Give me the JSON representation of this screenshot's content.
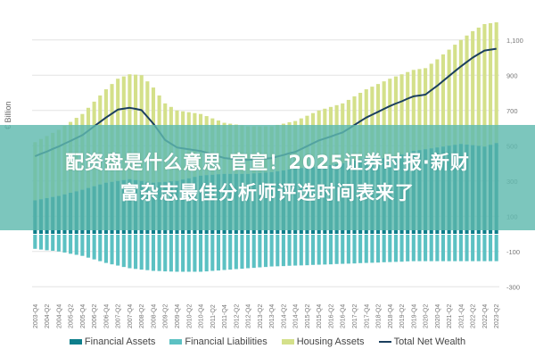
{
  "chart_data": {
    "type": "bar",
    "stacked": true,
    "title": "",
    "ylabel": "€ Billion",
    "xlabel": "",
    "ylim": [
      -300,
      1200
    ],
    "yticks": [
      1100,
      900,
      700,
      500,
      300,
      100,
      -100,
      -300
    ],
    "ytick_labels": [
      "1,100",
      "900",
      "700",
      "500",
      "300",
      "100",
      "-100",
      "-300"
    ],
    "grid": true,
    "legend_position": "bottom",
    "x_tick_labels": [
      "2003-Q4",
      "2004-Q2",
      "2004-Q4",
      "2005-Q2",
      "2005-Q4",
      "2006-Q2",
      "2006-Q4",
      "2007-Q2",
      "2007-Q4",
      "2008-Q2",
      "2008-Q4",
      "2009-Q2",
      "2009-Q4",
      "2010-Q2",
      "2010-Q4",
      "2011-Q2",
      "2011-Q4",
      "2012-Q2",
      "2012-Q4",
      "2013-Q2",
      "2013-Q4",
      "2014-Q2",
      "2014-Q4",
      "2015-Q2",
      "2015-Q4",
      "2016-Q2",
      "2016-Q4",
      "2017-Q2",
      "2017-Q4",
      "2018-Q2",
      "2018-Q4",
      "2019-Q2",
      "2019-Q4",
      "2020-Q2",
      "2020-Q4",
      "2021-Q2",
      "2021-Q4",
      "2022-Q2",
      "2022-Q4",
      "2023-Q2"
    ],
    "x_start": "2003-Q4",
    "x_end": "2023-Q2",
    "frequency": "quarterly",
    "series": [
      {
        "name": "Financial Assets",
        "kind": "bar",
        "color": "#0e7f8c",
        "values": [
          190,
          196,
          203,
          209,
          215,
          224,
          233,
          241,
          250,
          260,
          270,
          280,
          290,
          295,
          300,
          305,
          310,
          305,
          300,
          295,
          290,
          293,
          295,
          298,
          300,
          308,
          315,
          323,
          330,
          333,
          335,
          338,
          340,
          340,
          340,
          340,
          340,
          343,
          345,
          348,
          350,
          355,
          360,
          365,
          370,
          373,
          375,
          378,
          380,
          385,
          390,
          395,
          400,
          408,
          415,
          423,
          430,
          430,
          430,
          430,
          430,
          440,
          450,
          460,
          470,
          475,
          480,
          485,
          490,
          495,
          500,
          505,
          510,
          506,
          503,
          499,
          495,
          505,
          515
        ]
      },
      {
        "name": "Financial Liabilities",
        "kind": "bar",
        "color": "#5cc1c3",
        "values": [
          -80,
          -84,
          -88,
          -91,
          -95,
          -101,
          -108,
          -114,
          -120,
          -130,
          -140,
          -150,
          -160,
          -168,
          -175,
          -183,
          -190,
          -194,
          -198,
          -201,
          -205,
          -206,
          -208,
          -209,
          -210,
          -210,
          -210,
          -210,
          -210,
          -208,
          -205,
          -203,
          -200,
          -198,
          -195,
          -193,
          -190,
          -188,
          -185,
          -183,
          -180,
          -179,
          -178,
          -176,
          -175,
          -174,
          -173,
          -171,
          -170,
          -169,
          -168,
          -166,
          -165,
          -164,
          -163,
          -161,
          -160,
          -159,
          -158,
          -156,
          -155,
          -154,
          -153,
          -151,
          -150,
          -150,
          -150,
          -150,
          -150,
          -150,
          -150,
          -150,
          -150,
          -150,
          -150,
          -150,
          -150,
          -150,
          -150
        ]
      },
      {
        "name": "Housing Assets",
        "kind": "bar",
        "color": "#d4e08a",
        "values": [
          330,
          342,
          352,
          364,
          375,
          389,
          402,
          417,
          430,
          455,
          480,
          505,
          530,
          555,
          580,
          588,
          595,
          598,
          600,
          570,
          540,
          492,
          445,
          422,
          400,
          387,
          375,
          362,
          350,
          335,
          320,
          305,
          290,
          285,
          280,
          275,
          270,
          267,
          265,
          262,
          260,
          263,
          265,
          268,
          270,
          282,
          295,
          307,
          320,
          325,
          330,
          335,
          340,
          352,
          365,
          377,
          390,
          405,
          420,
          435,
          450,
          453,
          455,
          458,
          460,
          460,
          460,
          480,
          500,
          523,
          545,
          568,
          590,
          619,
          647,
          671,
          695,
          690,
          685
        ]
      },
      {
        "name": "Total Net Wealth",
        "kind": "line",
        "color": "#1b3f5e",
        "values": [
          440,
          454,
          467,
          482,
          495,
          512,
          527,
          544,
          560,
          585,
          610,
          635,
          660,
          682,
          705,
          710,
          715,
          709,
          702,
          664,
          625,
          579,
          532,
          511,
          490,
          485,
          480,
          475,
          470,
          460,
          450,
          440,
          430,
          427,
          425,
          422,
          420,
          422,
          425,
          427,
          430,
          439,
          447,
          457,
          465,
          481,
          497,
          514,
          530,
          541,
          552,
          564,
          575,
          596,
          617,
          639,
          660,
          676,
          692,
          709,
          725,
          739,
          752,
          767,
          780,
          785,
          790,
          815,
          840,
          868,
          895,
          923,
          950,
          975,
          1000,
          1020,
          1040,
          1045,
          1050
        ]
      }
    ]
  },
  "banner": {
    "line1": "配资盘是什么意思 官宣！2025证券时报·新财",
    "line2": "富杂志最佳分析师评选时间表来了",
    "color": "#5fb9af"
  }
}
